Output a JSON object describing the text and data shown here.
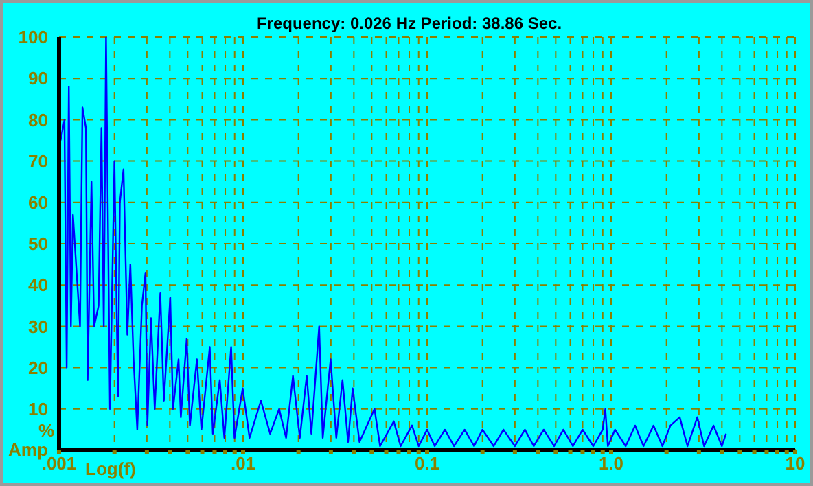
{
  "chart_data": {
    "type": "line",
    "title": "Frequency: 0.026 Hz   Period: 38.86 Sec.",
    "xlabel": "Log(f)",
    "ylabel": "% Amp",
    "log": "x",
    "grid": true,
    "marker": "none",
    "line_style": "solid",
    "xlim": [
      0.001,
      10
    ],
    "xticks": [
      {
        "value": 0.001,
        "label": ".001"
      },
      {
        "value": 0.002,
        "label": null
      },
      {
        "value": 0.003,
        "label": null
      },
      {
        "value": 0.004,
        "label": null
      },
      {
        "value": 0.005,
        "label": null
      },
      {
        "value": 0.006,
        "label": null
      },
      {
        "value": 0.007,
        "label": null
      },
      {
        "value": 0.008,
        "label": null
      },
      {
        "value": 0.009,
        "label": null
      },
      {
        "value": 0.01,
        "label": ".01"
      },
      {
        "value": 0.02,
        "label": null
      },
      {
        "value": 0.03,
        "label": null
      },
      {
        "value": 0.04,
        "label": null
      },
      {
        "value": 0.05,
        "label": null
      },
      {
        "value": 0.06,
        "label": null
      },
      {
        "value": 0.07,
        "label": null
      },
      {
        "value": 0.08,
        "label": null
      },
      {
        "value": 0.09,
        "label": null
      },
      {
        "value": 0.1,
        "label": "0.1"
      },
      {
        "value": 0.2,
        "label": null
      },
      {
        "value": 0.3,
        "label": null
      },
      {
        "value": 0.4,
        "label": null
      },
      {
        "value": 0.5,
        "label": null
      },
      {
        "value": 0.6,
        "label": null
      },
      {
        "value": 0.7,
        "label": null
      },
      {
        "value": 0.8,
        "label": null
      },
      {
        "value": 0.9,
        "label": null
      },
      {
        "value": 1,
        "label": "1.0"
      },
      {
        "value": 2,
        "label": null
      },
      {
        "value": 3,
        "label": null
      },
      {
        "value": 4,
        "label": null
      },
      {
        "value": 5,
        "label": null
      },
      {
        "value": 6,
        "label": null
      },
      {
        "value": 7,
        "label": null
      },
      {
        "value": 8,
        "label": null
      },
      {
        "value": 9,
        "label": null
      },
      {
        "value": 10,
        "label": "10"
      }
    ],
    "ylim": [
      0,
      100
    ],
    "yticks": [
      10,
      20,
      30,
      40,
      50,
      60,
      70,
      80,
      90,
      100
    ],
    "x": [
      0.00102,
      0.00107,
      0.0011,
      0.00113,
      0.00116,
      0.00119,
      0.0013,
      0.00134,
      0.0014,
      0.00143,
      0.0015,
      0.00155,
      0.00164,
      0.0017,
      0.00175,
      0.0018,
      0.00189,
      0.002,
      0.00209,
      0.00214,
      0.00224,
      0.00235,
      0.00244,
      0.00254,
      0.00266,
      0.00282,
      0.00295,
      0.00302,
      0.00316,
      0.00331,
      0.00355,
      0.00371,
      0.00402,
      0.00416,
      0.00446,
      0.00459,
      0.00494,
      0.00514,
      0.00561,
      0.00594,
      0.00659,
      0.00685,
      0.00747,
      0.00791,
      0.00861,
      0.00898,
      0.00995,
      0.01084,
      0.0125,
      0.01403,
      0.0157,
      0.01713,
      0.01866,
      0.02034,
      0.02217,
      0.0235,
      0.0259,
      0.0271,
      0.0299,
      0.0321,
      0.0347,
      0.0372,
      0.0394,
      0.0429,
      0.0518,
      0.0555,
      0.0659,
      0.0718,
      0.0828,
      0.09,
      0.1,
      0.11,
      0.125,
      0.14,
      0.16,
      0.18,
      0.2,
      0.23,
      0.26,
      0.3,
      0.34,
      0.38,
      0.43,
      0.49,
      0.55,
      0.62,
      0.7,
      0.8,
      0.9,
      0.93,
      0.96,
      1.05,
      1.2,
      1.35,
      1.5,
      1.7,
      1.9,
      2.1,
      2.36,
      2.6,
      2.94,
      3.2,
      3.6,
      4,
      4.21
    ],
    "series": [
      {
        "color": "#0000ff",
        "values": [
          75,
          80,
          20,
          88,
          30,
          57,
          30,
          83,
          78,
          17,
          65,
          30,
          35,
          78,
          30,
          100,
          10,
          70,
          13,
          60,
          68,
          28,
          45,
          22,
          5,
          35,
          43,
          6,
          32,
          10,
          38,
          12,
          37,
          10,
          22,
          8,
          27,
          6,
          22,
          5,
          25,
          4,
          17,
          3,
          25,
          3,
          15,
          3,
          12,
          4,
          10,
          3,
          18,
          3,
          18,
          4,
          30,
          3,
          22,
          3,
          17,
          2,
          15,
          2,
          10,
          1,
          7,
          1,
          6,
          1,
          5,
          1,
          5,
          1,
          5,
          1,
          5,
          1,
          5,
          1,
          5,
          1,
          5,
          1,
          5,
          1,
          5,
          1,
          5,
          10,
          1,
          5,
          1,
          6,
          1,
          6,
          1,
          6,
          8,
          1,
          8,
          1,
          6,
          1,
          4
        ]
      }
    ]
  }
}
